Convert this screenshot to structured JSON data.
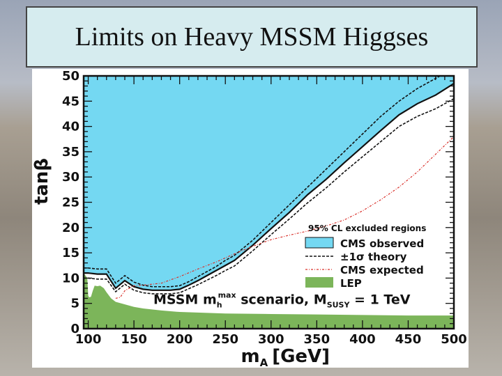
{
  "slide": {
    "title": "Limits on Heavy MSSM Higgses"
  },
  "chart_data": {
    "type": "area",
    "xlabel": "m_A [GeV]",
    "ylabel": "tanβ",
    "xlim": [
      95,
      500
    ],
    "ylim": [
      0,
      50
    ],
    "xticks": [
      100,
      150,
      200,
      250,
      300,
      350,
      400,
      450,
      500
    ],
    "yticks": [
      0,
      5,
      10,
      15,
      20,
      25,
      30,
      35,
      40,
      45,
      50
    ],
    "annotation": {
      "prefix": "MSSM m",
      "sub": "h",
      "sup": "max",
      "mid": " scenario, M",
      "sub2": "SUSY",
      "suffix": " = 1 TeV"
    },
    "legend": {
      "title": "95% CL excluded regions",
      "placement": "right",
      "items": [
        {
          "label": "CMS observed",
          "color": "#74d8f2",
          "kind": "fill"
        },
        {
          "label": "±1σ theory",
          "color": "#111111",
          "kind": "dashed"
        },
        {
          "label": "CMS expected",
          "color": "#d9302a",
          "kind": "dashdot"
        },
        {
          "label": "LEP",
          "color": "#7cb55a",
          "kind": "fill"
        }
      ]
    },
    "series": [
      {
        "name": "CMS observed",
        "color": "#74d8f2",
        "x": [
          95,
          100,
          110,
          120,
          130,
          140,
          150,
          160,
          170,
          180,
          190,
          200,
          210,
          220,
          230,
          240,
          250,
          260,
          280,
          300,
          320,
          340,
          360,
          380,
          400,
          420,
          440,
          460,
          480,
          500
        ],
        "y": [
          11,
          11,
          10.8,
          10.8,
          8,
          9.5,
          8.3,
          7.8,
          7.6,
          7.6,
          7.6,
          7.8,
          8.6,
          9.5,
          10.5,
          11.5,
          12.5,
          13.5,
          16.5,
          19.8,
          23,
          26.5,
          29.5,
          32.8,
          36,
          39.2,
          42.3,
          44.5,
          46.2,
          48.5
        ]
      },
      {
        "name": "±1σ theory",
        "color": "#111111",
        "x": [
          95,
          100,
          110,
          120,
          130,
          140,
          150,
          160,
          170,
          180,
          190,
          200,
          210,
          220,
          230,
          240,
          250,
          260,
          280,
          300,
          320,
          340,
          360,
          380,
          400,
          420,
          440,
          460,
          480,
          500
        ],
        "y": [
          12,
          12,
          11.8,
          11.8,
          9,
          10.5,
          9.2,
          8.6,
          8.3,
          8.3,
          8.3,
          8.5,
          9.3,
          10.3,
          11.3,
          12.3,
          13.5,
          14.5,
          17.5,
          21,
          24.5,
          28,
          31.5,
          35,
          38.5,
          42,
          45,
          47.5,
          49.5,
          51.5
        ]
      },
      {
        "name": "±1σ theory",
        "color": "#111111",
        "x": [
          95,
          100,
          110,
          120,
          130,
          140,
          150,
          160,
          170,
          180,
          190,
          200,
          210,
          220,
          230,
          240,
          250,
          260,
          280,
          300,
          320,
          340,
          360,
          380,
          400,
          420,
          440,
          460,
          480,
          500
        ],
        "y": [
          10,
          10,
          9.8,
          9.8,
          7.3,
          8.8,
          7.6,
          7.1,
          6.9,
          6.9,
          6.9,
          7.1,
          7.9,
          8.7,
          9.6,
          10.5,
          11.5,
          12.4,
          15.4,
          18.6,
          21.7,
          24.9,
          27.8,
          31,
          34,
          37,
          40,
          42,
          43.5,
          45.5
        ]
      },
      {
        "name": "CMS expected",
        "color": "#d9302a",
        "x": [
          130,
          135,
          140,
          150,
          160,
          170,
          180,
          200,
          220,
          240,
          260,
          280,
          300,
          320,
          340,
          360,
          380,
          400,
          420,
          440,
          460,
          480,
          500
        ],
        "y": [
          6,
          6.2,
          7.5,
          8.5,
          8.6,
          8.8,
          9,
          10.3,
          11.8,
          13.2,
          14.8,
          16.3,
          17.6,
          18.5,
          19.3,
          20.3,
          21.5,
          23.3,
          25.5,
          28,
          31,
          34.5,
          38
        ]
      },
      {
        "name": "LEP",
        "color": "#7cb55a",
        "x": [
          95,
          99,
          100,
          101,
          103,
          105,
          107,
          110,
          113,
          117,
          120,
          125,
          130,
          140,
          150,
          160,
          180,
          200,
          250,
          300,
          350,
          400,
          450,
          500
        ],
        "y": [
          11,
          10,
          6.5,
          6.2,
          6.3,
          7.5,
          8.5,
          8.4,
          8.5,
          8,
          7.2,
          6,
          5.3,
          4.8,
          4.3,
          4,
          3.6,
          3.3,
          3,
          2.9,
          2.8,
          2.7,
          2.6,
          2.6
        ]
      }
    ]
  }
}
